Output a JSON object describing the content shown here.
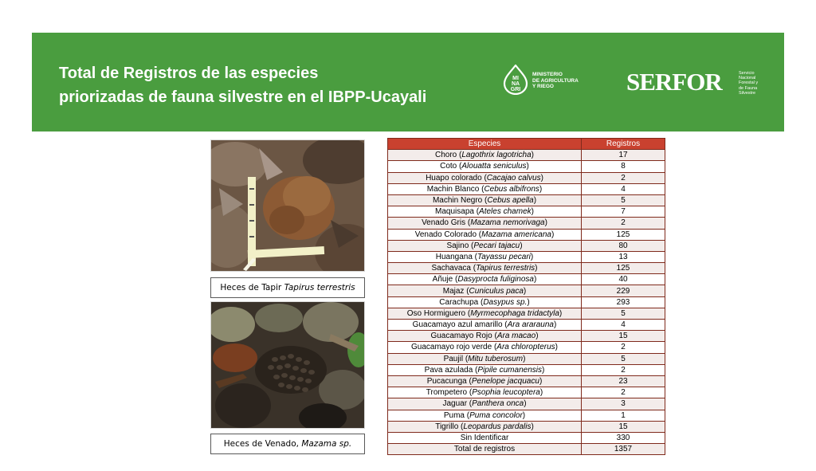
{
  "header": {
    "title_line1": "Total de Registros de las especies",
    "title_line2": "priorizadas de fauna silvestre en el IBPP-Ucayali",
    "logo_minagri": {
      "mark": [
        "MI",
        "NA",
        "GRI"
      ],
      "text": [
        "MINISTERIO",
        "DE AGRICULTURA",
        "Y RIEGO"
      ]
    },
    "logo_serfor": {
      "word": "SERFOR",
      "text": [
        "Servicio",
        "Nacional",
        "Forestal y",
        "de Fauna",
        "Silvestre"
      ]
    }
  },
  "photos": {
    "caption1": {
      "text": "Heces de Tapir ",
      "italic": "Tapirus terrestris"
    },
    "caption2": {
      "text": "Heces de Venado, ",
      "italic": "Mazama sp."
    }
  },
  "table": {
    "headers": [
      "Especies",
      "Registros"
    ],
    "rows": [
      {
        "name": "Choro",
        "sci": "Lagothrix lagotricha",
        "count": "17"
      },
      {
        "name": "Coto",
        "sci": "Alouatta seniculus",
        "count": "8"
      },
      {
        "name": "Huapo colorado",
        "sci": "Cacajao calvus",
        "count": "2"
      },
      {
        "name": "Machin Blanco",
        "sci": "Cebus albifrons",
        "count": "4"
      },
      {
        "name": "Machin Negro",
        "sci": "Cebus apella",
        "count": "5"
      },
      {
        "name": "Maquisapa",
        "sci": "Ateles chamek",
        "count": "7"
      },
      {
        "name": "Venado Gris",
        "sci": "Mazama nemorivaga",
        "count": "2"
      },
      {
        "name": "Venado Colorado",
        "sci": "Mazama americana",
        "count": "125"
      },
      {
        "name": "Sajino",
        "sci": "Pecari tajacu",
        "count": "80"
      },
      {
        "name": "Huangana",
        "sci": "Tayassu pecari",
        "count": "13"
      },
      {
        "name": "Sachavaca",
        "sci": "Tapirus terrestris",
        "count": "125"
      },
      {
        "name": "Añuje",
        "sci": "Dasyprocta fuliginosa",
        "count": "40"
      },
      {
        "name": "Majaz",
        "sci": "Cuniculus paca",
        "count": "229"
      },
      {
        "name": "Carachupa",
        "sci": "Dasypus sp.",
        "count": "293"
      },
      {
        "name": "Oso Hormiguero",
        "sci": "Myrmecophaga tridactyla",
        "count": "5"
      },
      {
        "name": "Guacamayo azul amarillo",
        "sci": "Ara ararauna",
        "count": "4"
      },
      {
        "name": "Guacamayo Rojo",
        "sci": "Ara macao",
        "count": "15"
      },
      {
        "name": "Guacamayo rojo verde",
        "sci": "Ara chloropterus",
        "count": "2"
      },
      {
        "name": "Paujil",
        "sci": "Mitu tuberosum",
        "count": "5"
      },
      {
        "name": "Pava azulada",
        "sci": "Pipile cumanensis",
        "count": "2"
      },
      {
        "name": "Pucacunga",
        "sci": "Penelope jacquacu",
        "count": "23"
      },
      {
        "name": "Trompetero",
        "sci": "Psophia leucoptera",
        "count": "2"
      },
      {
        "name": "Jaguar",
        "sci": "Panthera onca",
        "count": "3"
      },
      {
        "name": "Puma",
        "sci": "Puma concolor",
        "count": "1"
      },
      {
        "name": "Tigrillo",
        "sci": "Leopardus pardalis",
        "count": "15"
      },
      {
        "name": "Sin Identificar",
        "sci": "",
        "count": "330"
      },
      {
        "name": "Total de registros",
        "sci": "",
        "count": "1357"
      }
    ]
  },
  "colors": {
    "banner": "#4a9d3f",
    "table_header": "#c9412f",
    "table_border": "#7f2a1c"
  }
}
